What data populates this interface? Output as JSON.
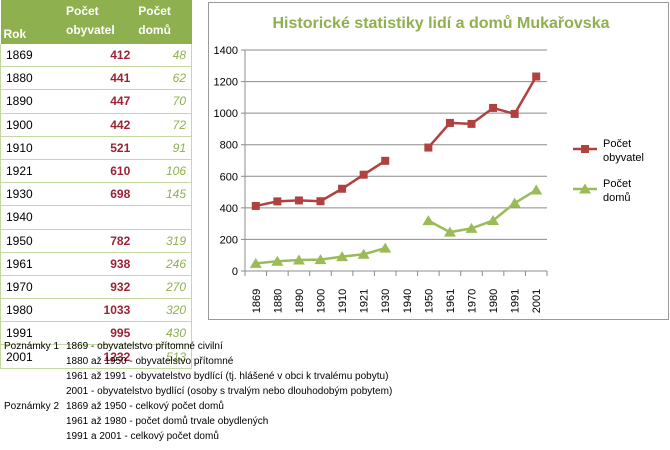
{
  "table": {
    "headers": {
      "year": "Rok",
      "population": "Počet obyvatel",
      "houses": "Počet domů"
    },
    "rows": [
      {
        "year": "1869",
        "population": "412",
        "houses": "48"
      },
      {
        "year": "1880",
        "population": "441",
        "houses": "62"
      },
      {
        "year": "1890",
        "population": "447",
        "houses": "70"
      },
      {
        "year": "1900",
        "population": "442",
        "houses": "72"
      },
      {
        "year": "1910",
        "population": "521",
        "houses": "91"
      },
      {
        "year": "1921",
        "population": "610",
        "houses": "106"
      },
      {
        "year": "1930",
        "population": "698",
        "houses": "145"
      },
      {
        "year": "1940",
        "population": "",
        "houses": ""
      },
      {
        "year": "1950",
        "population": "782",
        "houses": "319"
      },
      {
        "year": "1961",
        "population": "938",
        "houses": "246"
      },
      {
        "year": "1970",
        "population": "932",
        "houses": "270"
      },
      {
        "year": "1980",
        "population": "1033",
        "houses": "320"
      },
      {
        "year": "1991",
        "population": "995",
        "houses": "430"
      },
      {
        "year": "2001",
        "population": "1232",
        "houses": "513"
      }
    ]
  },
  "chart_data": {
    "type": "line",
    "title": "Historické statistiky lidí a domů Mukařovska",
    "categories": [
      "1869",
      "1880",
      "1890",
      "1900",
      "1910",
      "1921",
      "1930",
      "1940",
      "1950",
      "1961",
      "1970",
      "1980",
      "1991",
      "2001"
    ],
    "series": [
      {
        "name": "Počet obyvatel",
        "color": "#b0413e",
        "marker": "square",
        "values": [
          412,
          441,
          447,
          442,
          521,
          610,
          698,
          null,
          782,
          938,
          932,
          1033,
          995,
          1232
        ]
      },
      {
        "name": "Počet domů",
        "color": "#9bbb59",
        "marker": "triangle",
        "values": [
          48,
          62,
          70,
          72,
          91,
          106,
          145,
          null,
          319,
          246,
          270,
          320,
          430,
          513
        ]
      }
    ],
    "ylim": [
      0,
      1400
    ],
    "yticks": [
      0,
      200,
      400,
      600,
      800,
      1000,
      1200,
      1400
    ],
    "grid": true,
    "legend": "right",
    "xlabel": "",
    "ylabel": ""
  },
  "notes": [
    {
      "label": "Poznámky 1",
      "text": "1869 - obyvatelstvo přítomné civilní"
    },
    {
      "label": "",
      "text": "1880 až 1950 - obyvatelstvo přítomné"
    },
    {
      "label": "",
      "text": "1961 až 1991 - obyvatelstvo bydlící (tj. hlášené v obci k trvalému pobytu)"
    },
    {
      "label": "",
      "text": "2001 - obyvatelstvo bydlící (osoby s trvalým nebo dlouhodobým pobytem)"
    },
    {
      "label": "Poznámky 2",
      "text": "1869 až 1950 - celkový počet domů"
    },
    {
      "label": "",
      "text": "1961 až 1980 - počet domů trvale obydlených"
    },
    {
      "label": "",
      "text": "1991 a 2001 - celkový počet domů"
    }
  ]
}
